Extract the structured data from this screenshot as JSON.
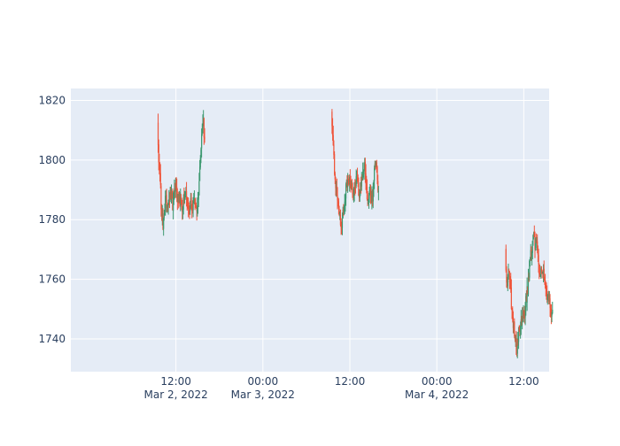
{
  "chart_data": {
    "type": "candlestick",
    "title": "",
    "xlabel": "",
    "ylabel": "",
    "x_range": [
      "2022-03-01T21:30:00",
      "2022-03-04T15:30:00"
    ],
    "ylim": [
      1729,
      1824
    ],
    "grid": true,
    "legend": "none",
    "colors": {
      "increasing": "#3d9970",
      "decreasing": "#ef553b",
      "plot_bg": "#e5ecf6",
      "grid": "#ffffff",
      "tick_text": "#2a3f5f"
    },
    "y_ticks": [
      1740,
      1760,
      1780,
      1800,
      1820
    ],
    "x_ticks": [
      {
        "t": "2022-03-02T12:00:00",
        "label": "12:00",
        "sublabel": "Mar 2, 2022"
      },
      {
        "t": "2022-03-03T00:00:00",
        "label": "00:00",
        "sublabel": "Mar 3, 2022"
      },
      {
        "t": "2022-03-03T12:00:00",
        "label": "12:00",
        "sublabel": ""
      },
      {
        "t": "2022-03-04T00:00:00",
        "label": "00:00",
        "sublabel": "Mar 4, 2022"
      },
      {
        "t": "2022-03-04T12:00:00",
        "label": "12:00",
        "sublabel": ""
      }
    ],
    "sessions": [
      {
        "start": "2022-03-02T09:30:00",
        "end": "2022-03-02T16:00:00",
        "path": [
          [
            0,
            1812
          ],
          [
            0.02,
            1800
          ],
          [
            0.05,
            1796
          ],
          [
            0.08,
            1783
          ],
          [
            0.12,
            1778
          ],
          [
            0.17,
            1787
          ],
          [
            0.22,
            1783
          ],
          [
            0.28,
            1790
          ],
          [
            0.32,
            1785
          ],
          [
            0.37,
            1791
          ],
          [
            0.42,
            1788
          ],
          [
            0.47,
            1787
          ],
          [
            0.52,
            1783
          ],
          [
            0.57,
            1790
          ],
          [
            0.62,
            1787
          ],
          [
            0.66,
            1781
          ],
          [
            0.7,
            1787
          ],
          [
            0.74,
            1783
          ],
          [
            0.78,
            1788
          ],
          [
            0.82,
            1784
          ],
          [
            0.86,
            1786
          ],
          [
            0.9,
            1797
          ],
          [
            0.94,
            1808
          ],
          [
            0.97,
            1815
          ],
          [
            1.0,
            1805
          ]
        ]
      },
      {
        "start": "2022-03-03T09:30:00",
        "end": "2022-03-03T16:00:00",
        "path": [
          [
            0,
            1816
          ],
          [
            0.03,
            1808
          ],
          [
            0.07,
            1795
          ],
          [
            0.1,
            1790
          ],
          [
            0.14,
            1786
          ],
          [
            0.18,
            1780
          ],
          [
            0.21,
            1776
          ],
          [
            0.25,
            1783
          ],
          [
            0.3,
            1789
          ],
          [
            0.35,
            1795
          ],
          [
            0.4,
            1793
          ],
          [
            0.45,
            1787
          ],
          [
            0.5,
            1791
          ],
          [
            0.54,
            1796
          ],
          [
            0.58,
            1787
          ],
          [
            0.62,
            1791
          ],
          [
            0.66,
            1795
          ],
          [
            0.7,
            1799
          ],
          [
            0.74,
            1790
          ],
          [
            0.78,
            1787
          ],
          [
            0.82,
            1791
          ],
          [
            0.86,
            1786
          ],
          [
            0.9,
            1794
          ],
          [
            0.94,
            1800
          ],
          [
            0.97,
            1794
          ],
          [
            1.0,
            1789
          ]
        ]
      },
      {
        "start": "2022-03-04T09:30:00",
        "end": "2022-03-04T16:00:00",
        "path": [
          [
            0,
            1770
          ],
          [
            0.03,
            1758
          ],
          [
            0.07,
            1762
          ],
          [
            0.1,
            1760
          ],
          [
            0.13,
            1750
          ],
          [
            0.17,
            1745
          ],
          [
            0.2,
            1741
          ],
          [
            0.24,
            1737
          ],
          [
            0.28,
            1742
          ],
          [
            0.32,
            1744
          ],
          [
            0.36,
            1746
          ],
          [
            0.4,
            1748
          ],
          [
            0.44,
            1753
          ],
          [
            0.48,
            1758
          ],
          [
            0.52,
            1766
          ],
          [
            0.56,
            1770
          ],
          [
            0.6,
            1778
          ],
          [
            0.63,
            1771
          ],
          [
            0.66,
            1773
          ],
          [
            0.7,
            1765
          ],
          [
            0.74,
            1762
          ],
          [
            0.78,
            1764
          ],
          [
            0.82,
            1760
          ],
          [
            0.86,
            1757
          ],
          [
            0.9,
            1755
          ],
          [
            0.94,
            1752
          ],
          [
            0.97,
            1748
          ],
          [
            1.0,
            1750
          ]
        ]
      }
    ],
    "candles_per_session": 78
  }
}
